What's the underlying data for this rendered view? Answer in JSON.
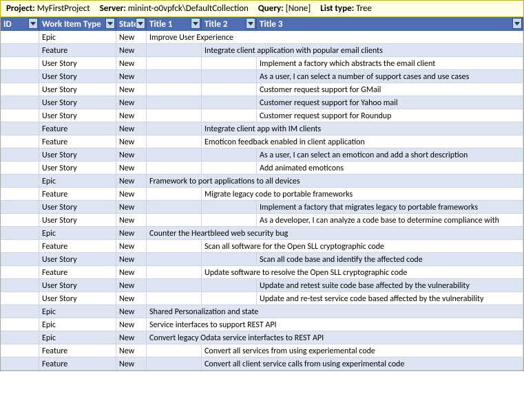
{
  "banner": {
    "project_label": "Project:",
    "project_value": "MyFirstProject",
    "server_label": "Server:",
    "server_value": "minint-o0vpfck\\DefaultCollection",
    "query_label": "Query:",
    "query_value": "[None]",
    "listtype_label": "List type:",
    "listtype_value": "Tree"
  },
  "headers": {
    "id": "ID",
    "wit": "Work Item Type",
    "state": "State",
    "t1": "Title 1",
    "t2": "Title 2",
    "t3": "Title 3"
  },
  "colors": {
    "banner_bg": "#fffde5",
    "header_bg": "#4f6db3",
    "alt_row_bg": "#dde5f2"
  },
  "rows": [
    {
      "wit": "Epic",
      "state": "New",
      "level": 1,
      "title": "Improve User Experience"
    },
    {
      "wit": "Feature",
      "state": "New",
      "level": 2,
      "title": "Integrate client application with popular email clients"
    },
    {
      "wit": "User Story",
      "state": "New",
      "level": 3,
      "title": "Implement a factory which abstracts the email client"
    },
    {
      "wit": "User Story",
      "state": "New",
      "level": 3,
      "title": "As a user, I can select a number of support cases and use cases"
    },
    {
      "wit": "User Story",
      "state": "New",
      "level": 3,
      "title": "Customer request support for GMail"
    },
    {
      "wit": "User Story",
      "state": "New",
      "level": 3,
      "title": "Customer request support for Yahoo mail"
    },
    {
      "wit": "User Story",
      "state": "New",
      "level": 3,
      "title": "Customer request support for Roundup"
    },
    {
      "wit": "Feature",
      "state": "New",
      "level": 2,
      "title": "Integrate client app with IM clients"
    },
    {
      "wit": "Feature",
      "state": "New",
      "level": 2,
      "title": "Emoticon feedback enabled in client application"
    },
    {
      "wit": "User Story",
      "state": "New",
      "level": 3,
      "title": "As a user, I can select an emoticon and add a short description"
    },
    {
      "wit": "User Story",
      "state": "New",
      "level": 3,
      "title": "Add animated emoticons"
    },
    {
      "wit": "Epic",
      "state": "New",
      "level": 1,
      "title": "Framework to port applications to all devices"
    },
    {
      "wit": "Feature",
      "state": "New",
      "level": 2,
      "title": "Migrate legacy code to portable frameworks"
    },
    {
      "wit": "User Story",
      "state": "New",
      "level": 3,
      "title": "Implement a factory that migrates legacy to portable frameworks"
    },
    {
      "wit": "User Story",
      "state": "New",
      "level": 3,
      "title": "As a developer, I can analyze a code base to determine compliance with"
    },
    {
      "wit": "Epic",
      "state": "New",
      "level": 1,
      "title": "Counter the Heartbleed web security bug"
    },
    {
      "wit": "Feature",
      "state": "New",
      "level": 2,
      "title": "Scan all software for the Open SLL cryptographic code"
    },
    {
      "wit": "User Story",
      "state": "New",
      "level": 3,
      "title": "Scan all code base and identify the affected code"
    },
    {
      "wit": "Feature",
      "state": "New",
      "level": 2,
      "title": "Update software to resolve the Open SLL cryptographic code"
    },
    {
      "wit": "User Story",
      "state": "New",
      "level": 3,
      "title": "Update and retest suite code base affected by the vulnerability"
    },
    {
      "wit": "User Story",
      "state": "New",
      "level": 3,
      "title": "Update and re-test service code based affected by the vulnerability"
    },
    {
      "wit": "Epic",
      "state": "New",
      "level": 1,
      "title": "Shared Personalization and state"
    },
    {
      "wit": "Epic",
      "state": "New",
      "level": 1,
      "title": "Service interfaces to support REST API"
    },
    {
      "wit": "Epic",
      "state": "New",
      "level": 1,
      "title": "Convert legacy Odata service interfactes to REST API"
    },
    {
      "wit": "Feature",
      "state": "New",
      "level": 2,
      "title": "Convert all services from using experiemental code"
    },
    {
      "wit": "Feature",
      "state": "New",
      "level": 2,
      "title": "Convert all client service calls from using experimental code"
    }
  ]
}
